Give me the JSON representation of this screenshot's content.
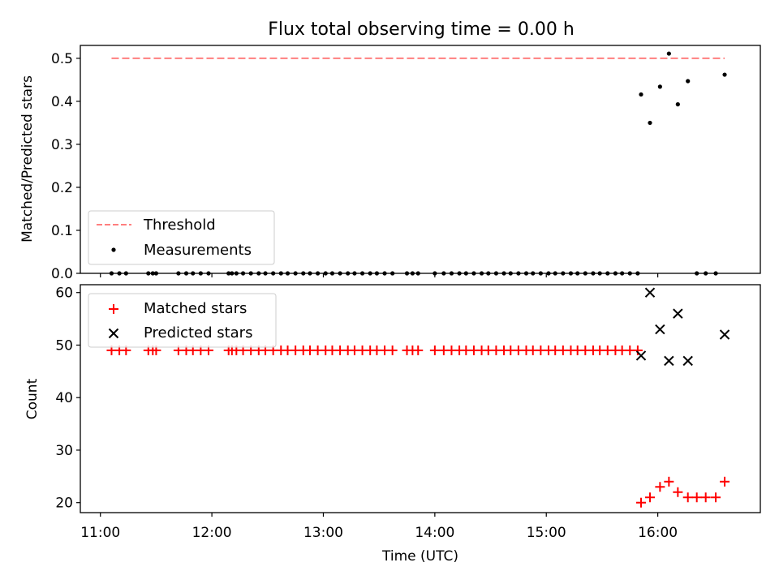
{
  "chart_data": {
    "title": "Flux total observing time = 0.00 h",
    "xlabel": "Time (UTC)",
    "x_ticks": [
      "11:00",
      "12:00",
      "13:00",
      "14:00",
      "15:00",
      "16:00"
    ],
    "x_tick_hours": [
      11,
      12,
      13,
      14,
      15,
      16
    ],
    "xlim": [
      10.82,
      16.92
    ],
    "panels": [
      {
        "type": "scatter",
        "ylabel": "Matched/Predicted stars",
        "ylim": [
          0,
          0.53
        ],
        "y_ticks": [
          0.0,
          0.1,
          0.2,
          0.3,
          0.4,
          0.5
        ],
        "y_tick_labels": [
          "0.0",
          "0.1",
          "0.2",
          "0.3",
          "0.4",
          "0.5"
        ],
        "legend": [
          "Threshold",
          "Measurements"
        ],
        "legend_position": "lower-left",
        "colors": {
          "threshold": "#ff7f7f",
          "measurements": "#000000"
        },
        "threshold": {
          "name": "Threshold",
          "y": 0.5,
          "x_range": [
            11.1,
            16.6
          ]
        },
        "measurements_name": "Measurements",
        "measurements": {
          "x": [
            11.1,
            11.17,
            11.23,
            11.43,
            11.47,
            11.5,
            11.7,
            11.77,
            11.83,
            11.9,
            11.97,
            12.15,
            12.18,
            12.22,
            12.28,
            12.35,
            12.42,
            12.48,
            12.55,
            12.62,
            12.68,
            12.75,
            12.82,
            12.88,
            12.95,
            13.02,
            13.08,
            13.15,
            13.22,
            13.28,
            13.35,
            13.42,
            13.48,
            13.55,
            13.62,
            13.75,
            13.8,
            13.85,
            14.0,
            14.08,
            14.15,
            14.22,
            14.28,
            14.35,
            14.42,
            14.48,
            14.55,
            14.62,
            14.68,
            14.75,
            14.82,
            14.88,
            14.95,
            15.02,
            15.08,
            15.15,
            15.22,
            15.28,
            15.35,
            15.42,
            15.48,
            15.55,
            15.62,
            15.68,
            15.75,
            15.82,
            15.85,
            15.93,
            16.02,
            16.1,
            16.18,
            16.27,
            16.35,
            16.43,
            16.52,
            16.6
          ],
          "y": [
            0,
            0,
            0,
            0,
            0,
            0,
            0,
            0,
            0,
            0,
            0,
            0,
            0,
            0,
            0,
            0,
            0,
            0,
            0,
            0,
            0,
            0,
            0,
            0,
            0,
            0,
            0,
            0,
            0,
            0,
            0,
            0,
            0,
            0,
            0,
            0,
            0,
            0,
            0,
            0,
            0,
            0,
            0,
            0,
            0,
            0,
            0,
            0,
            0,
            0,
            0,
            0,
            0,
            0,
            0,
            0,
            0,
            0,
            0,
            0,
            0,
            0,
            0,
            0,
            0,
            0,
            0.416,
            0.35,
            0.434,
            0.511,
            0.393,
            0.447,
            0,
            0,
            0,
            0.462
          ]
        }
      },
      {
        "type": "scatter",
        "ylabel": "Count",
        "xlabel": "Time (UTC)",
        "ylim": [
          18.1,
          61.5
        ],
        "y_ticks": [
          20,
          30,
          40,
          50,
          60
        ],
        "y_tick_labels": [
          "20",
          "30",
          "40",
          "50",
          "60"
        ],
        "legend": [
          "Matched stars",
          "Predicted stars"
        ],
        "legend_position": "top-left",
        "colors": {
          "matched": "#ff0000",
          "predicted": "#000000"
        },
        "matched_name": "Matched stars",
        "predicted_name": "Predicted stars",
        "matched": {
          "x": [
            11.1,
            11.17,
            11.23,
            11.43,
            11.47,
            11.5,
            11.7,
            11.77,
            11.83,
            11.9,
            11.97,
            12.15,
            12.18,
            12.22,
            12.28,
            12.35,
            12.42,
            12.48,
            12.55,
            12.62,
            12.68,
            12.75,
            12.82,
            12.88,
            12.95,
            13.02,
            13.08,
            13.15,
            13.22,
            13.28,
            13.35,
            13.42,
            13.48,
            13.55,
            13.62,
            13.75,
            13.8,
            13.85,
            14.0,
            14.08,
            14.15,
            14.22,
            14.28,
            14.35,
            14.42,
            14.48,
            14.55,
            14.62,
            14.68,
            14.75,
            14.82,
            14.88,
            14.95,
            15.02,
            15.08,
            15.15,
            15.22,
            15.28,
            15.35,
            15.42,
            15.48,
            15.55,
            15.62,
            15.68,
            15.75,
            15.82,
            15.85,
            15.93,
            16.02,
            16.1,
            16.18,
            16.27,
            16.35,
            16.43,
            16.52,
            16.6
          ],
          "y": [
            49,
            49,
            49,
            49,
            49,
            49,
            49,
            49,
            49,
            49,
            49,
            49,
            49,
            49,
            49,
            49,
            49,
            49,
            49,
            49,
            49,
            49,
            49,
            49,
            49,
            49,
            49,
            49,
            49,
            49,
            49,
            49,
            49,
            49,
            49,
            49,
            49,
            49,
            49,
            49,
            49,
            49,
            49,
            49,
            49,
            49,
            49,
            49,
            49,
            49,
            49,
            49,
            49,
            49,
            49,
            49,
            49,
            49,
            49,
            49,
            49,
            49,
            49,
            49,
            49,
            49,
            20,
            21,
            23,
            24,
            22,
            21,
            21,
            21,
            21,
            24
          ]
        },
        "predicted": {
          "x": [
            15.85,
            15.93,
            16.02,
            16.1,
            16.18,
            16.27,
            16.6
          ],
          "y": [
            48,
            60,
            53,
            47,
            56,
            47,
            52
          ]
        }
      }
    ]
  }
}
